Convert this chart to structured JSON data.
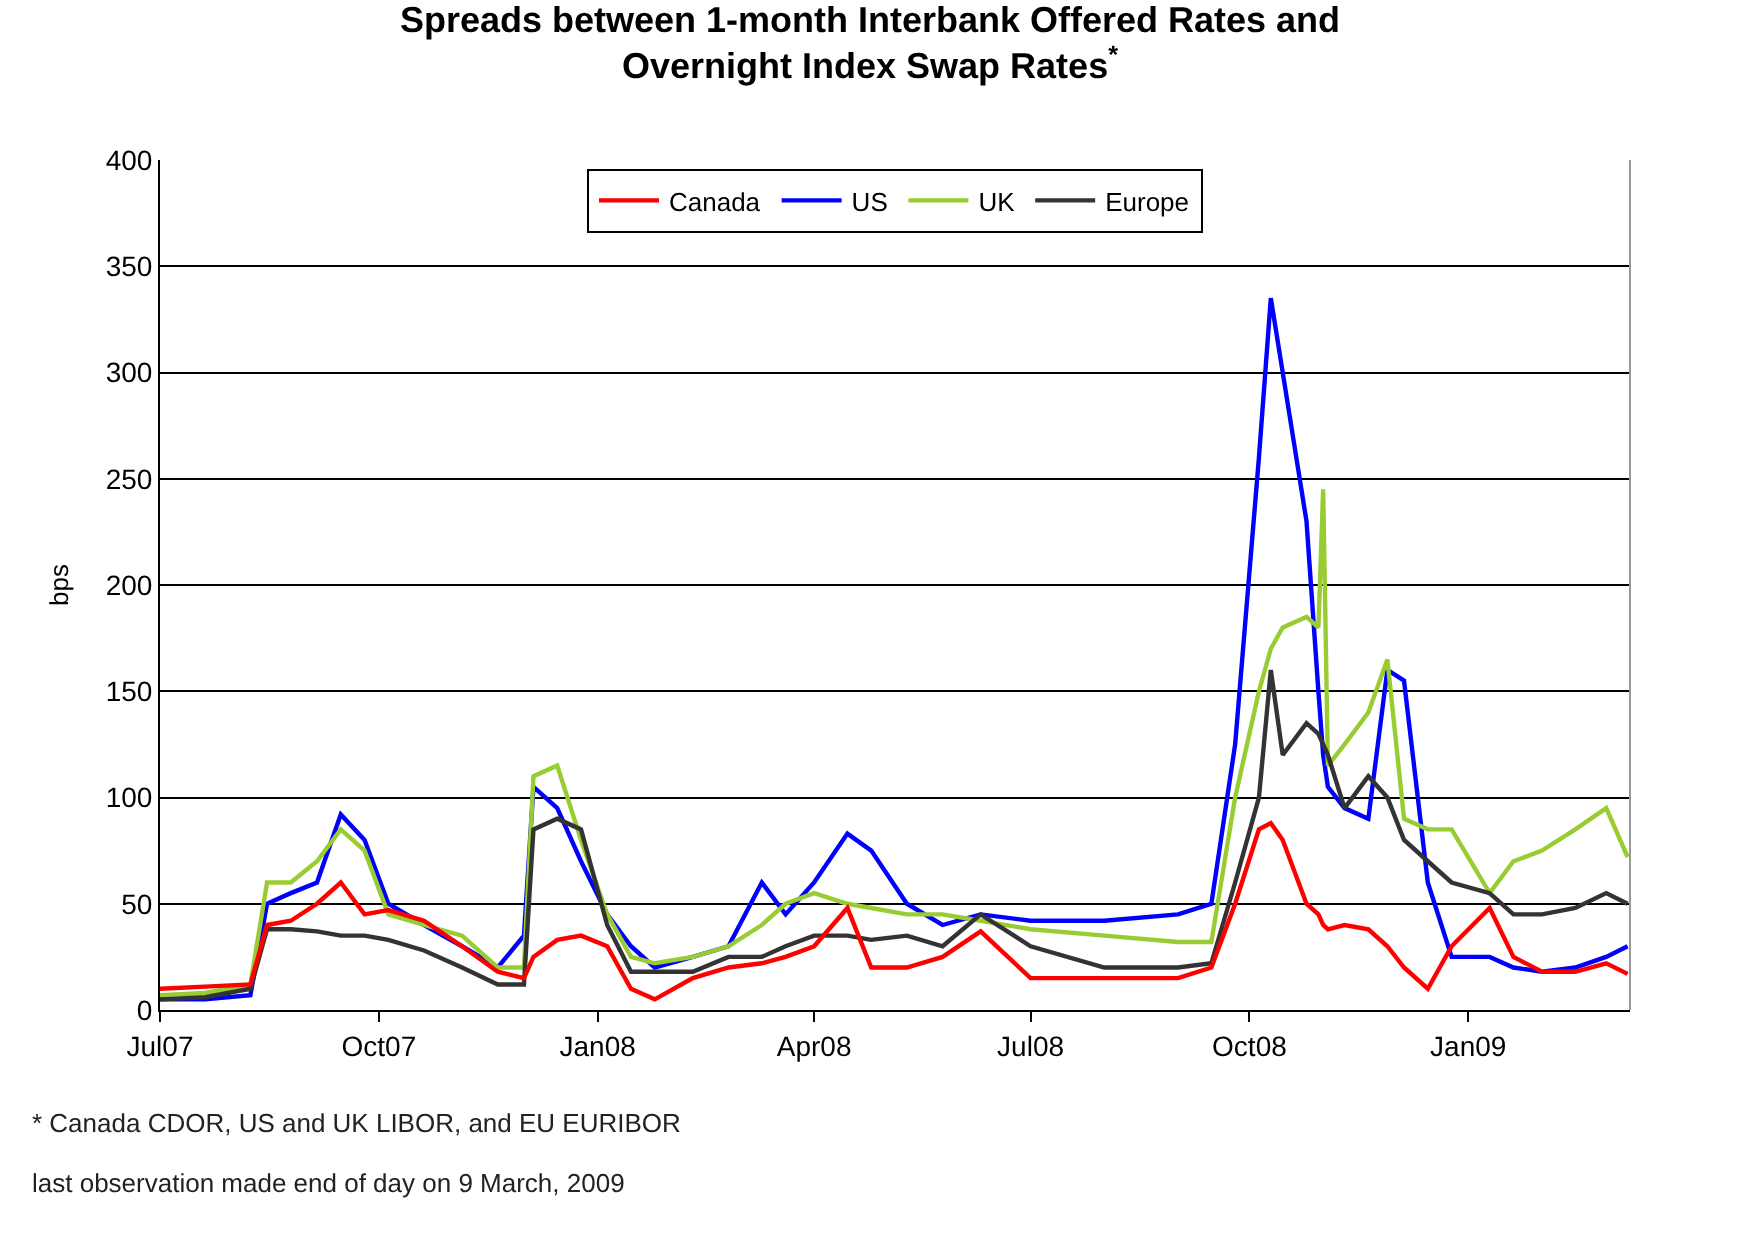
{
  "chart_data": {
    "type": "line",
    "title": "Spreads between 1-month Interbank Offered Rates and\nOvernight Index Swap Rates$^{*}$",
    "ylabel": "bps",
    "x": [
      "2007-07-01",
      "2007-07-20",
      "2007-08-08",
      "2007-08-15",
      "2007-08-25",
      "2007-09-05",
      "2007-09-15",
      "2007-09-25",
      "2007-10-05",
      "2007-10-20",
      "2007-11-05",
      "2007-11-20",
      "2007-12-01",
      "2007-12-05",
      "2007-12-15",
      "2007-12-25",
      "2008-01-05",
      "2008-01-15",
      "2008-01-25",
      "2008-02-10",
      "2008-02-25",
      "2008-03-10",
      "2008-03-20",
      "2008-04-01",
      "2008-04-15",
      "2008-04-25",
      "2008-05-10",
      "2008-05-25",
      "2008-06-10",
      "2008-07-01",
      "2008-08-01",
      "2008-09-01",
      "2008-09-15",
      "2008-09-25",
      "2008-10-05",
      "2008-10-10",
      "2008-10-15",
      "2008-10-25",
      "2008-10-30",
      "2008-11-01",
      "2008-11-03",
      "2008-11-10",
      "2008-11-20",
      "2008-11-28",
      "2008-12-05",
      "2008-12-15",
      "2008-12-25",
      "2009-01-10",
      "2009-01-20",
      "2009-02-01",
      "2009-02-15",
      "2009-02-28",
      "2009-03-09"
    ],
    "series": [
      {
        "name": "Canada",
        "color": "#ff0000",
        "values": [
          10,
          11,
          12,
          40,
          42,
          50,
          60,
          45,
          47,
          42,
          30,
          18,
          15,
          25,
          33,
          35,
          30,
          10,
          5,
          15,
          20,
          22,
          25,
          30,
          48,
          20,
          20,
          25,
          37,
          15,
          15,
          15,
          20,
          50,
          85,
          88,
          80,
          50,
          45,
          40,
          38,
          40,
          38,
          30,
          20,
          10,
          30,
          48,
          25,
          18,
          18,
          22,
          17
        ]
      },
      {
        "name": "US",
        "color": "#0000ff",
        "values": [
          5,
          5,
          7,
          50,
          55,
          60,
          92,
          80,
          50,
          40,
          30,
          20,
          35,
          105,
          95,
          70,
          45,
          30,
          20,
          25,
          30,
          60,
          45,
          60,
          83,
          75,
          50,
          40,
          45,
          42,
          42,
          45,
          50,
          125,
          260,
          335,
          300,
          230,
          150,
          120,
          105,
          95,
          90,
          160,
          155,
          60,
          25,
          25,
          20,
          18,
          20,
          25,
          30
        ]
      },
      {
        "name": "UK",
        "color": "#99cc33",
        "values": [
          7,
          8,
          12,
          60,
          60,
          70,
          85,
          75,
          45,
          40,
          35,
          20,
          20,
          110,
          115,
          80,
          45,
          25,
          22,
          25,
          30,
          40,
          50,
          55,
          50,
          48,
          45,
          45,
          42,
          38,
          35,
          32,
          32,
          100,
          150,
          170,
          180,
          185,
          180,
          245,
          115,
          125,
          140,
          165,
          90,
          85,
          85,
          55,
          70,
          75,
          85,
          95,
          72
        ]
      },
      {
        "name": "Europe",
        "color": "#333333",
        "values": [
          5,
          6,
          10,
          38,
          38,
          37,
          35,
          35,
          33,
          28,
          20,
          12,
          12,
          85,
          90,
          85,
          40,
          18,
          18,
          18,
          25,
          25,
          30,
          35,
          35,
          33,
          35,
          30,
          45,
          30,
          20,
          20,
          22,
          60,
          100,
          160,
          120,
          135,
          130,
          125,
          120,
          95,
          110,
          100,
          80,
          70,
          60,
          55,
          45,
          45,
          48,
          55,
          50
        ]
      }
    ],
    "xlim": [
      "2007-07-01",
      "2009-03-10"
    ],
    "xticks": [
      {
        "value": "2007-07-01",
        "label": "Jul07"
      },
      {
        "value": "2007-10-01",
        "label": "Oct07"
      },
      {
        "value": "2008-01-01",
        "label": "Jan08"
      },
      {
        "value": "2008-04-01",
        "label": "Apr08"
      },
      {
        "value": "2008-07-01",
        "label": "Jul08"
      },
      {
        "value": "2008-10-01",
        "label": "Oct08"
      },
      {
        "value": "2009-01-01",
        "label": "Jan09"
      }
    ],
    "ylim": [
      0,
      400
    ],
    "yticks": [
      0,
      50,
      100,
      150,
      200,
      250,
      300,
      350,
      400
    ],
    "grid": "y",
    "legend": "top",
    "marker": "none",
    "line_style": "solid",
    "annotations": [
      "* Canada CDOR, US and UK LIBOR, and EU EURIBOR",
      "last observation made end of day on 9 March, 2009"
    ]
  }
}
